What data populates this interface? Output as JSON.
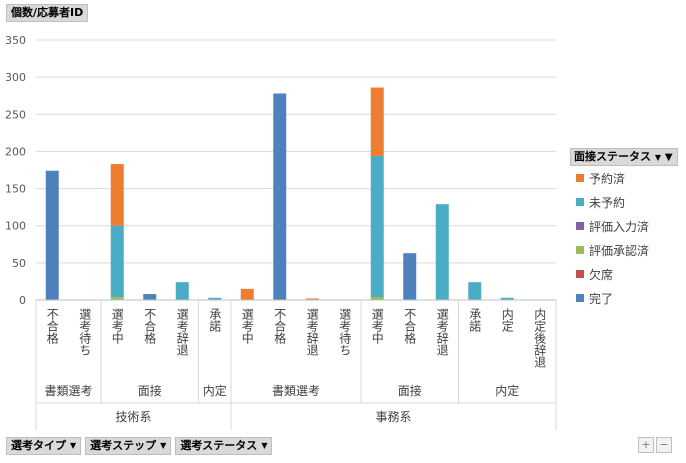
{
  "pivot": {
    "value_field": "個数/応募者ID",
    "filter_icon": "filter-icon",
    "dropdown_icon": "dropdown-arrow-icon",
    "axis_fields": [
      "選考タイプ",
      "選考ステップ",
      "選考ステータス"
    ],
    "zoom_in": "+",
    "zoom_out": "−"
  },
  "legend": {
    "title": "面接ステータス",
    "items": [
      {
        "label": "予約済",
        "color": "#ED7D31"
      },
      {
        "label": "未予約",
        "color": "#4BACC6"
      },
      {
        "label": "評価入力済",
        "color": "#8064A2"
      },
      {
        "label": "評価承認済",
        "color": "#9BBB59"
      },
      {
        "label": "欠席",
        "color": "#C0504D"
      },
      {
        "label": "完了",
        "color": "#4F81BD"
      }
    ]
  },
  "chart_data": {
    "type": "bar",
    "stacked": true,
    "ylim": [
      0,
      350
    ],
    "yticks": [
      0,
      50,
      100,
      150,
      200,
      250,
      300,
      350
    ],
    "grid": true,
    "legend_position": "right",
    "categories": [
      {
        "label": "不合格",
        "step": "書類選考",
        "type": "技術系"
      },
      {
        "label": "選考待ち",
        "step": "書類選考",
        "type": "技術系"
      },
      {
        "label": "選考中",
        "step": "面接",
        "type": "技術系"
      },
      {
        "label": "不合格",
        "step": "面接",
        "type": "技術系"
      },
      {
        "label": "選考辞退",
        "step": "面接",
        "type": "技術系"
      },
      {
        "label": "承諾",
        "step": "内定",
        "type": "技術系"
      },
      {
        "label": "選考中",
        "step": "書類選考",
        "type": "事務系"
      },
      {
        "label": "不合格",
        "step": "書類選考",
        "type": "事務系"
      },
      {
        "label": "選考辞退",
        "step": "書類選考",
        "type": "事務系"
      },
      {
        "label": "選考待ち",
        "step": "書類選考",
        "type": "事務系"
      },
      {
        "label": "選考中",
        "step": "面接",
        "type": "事務系"
      },
      {
        "label": "不合格",
        "step": "面接",
        "type": "事務系"
      },
      {
        "label": "選考辞退",
        "step": "面接",
        "type": "事務系"
      },
      {
        "label": "承諾",
        "step": "内定",
        "type": "事務系"
      },
      {
        "label": "内定",
        "step": "内定",
        "type": "事務系"
      },
      {
        "label": "内定後辞退",
        "step": "内定",
        "type": "事務系"
      }
    ],
    "step_groups": [
      {
        "label": "書類選考",
        "start": 0,
        "count": 2
      },
      {
        "label": "面接",
        "start": 2,
        "count": 3
      },
      {
        "label": "内定",
        "start": 5,
        "count": 1
      },
      {
        "label": "書類選考",
        "start": 6,
        "count": 4
      },
      {
        "label": "面接",
        "start": 10,
        "count": 3
      },
      {
        "label": "内定",
        "start": 13,
        "count": 3
      }
    ],
    "type_groups": [
      {
        "label": "技術系",
        "start": 0,
        "count": 6
      },
      {
        "label": "事務系",
        "start": 6,
        "count": 10
      }
    ],
    "series": [
      {
        "name": "完了",
        "color": "#4F81BD",
        "values": [
          174,
          0,
          0,
          8,
          0,
          0,
          0,
          278,
          0,
          0,
          0,
          63,
          0,
          0,
          0,
          0
        ]
      },
      {
        "name": "欠席",
        "color": "#C0504D",
        "values": [
          0,
          0,
          0,
          0,
          0,
          0,
          0,
          0,
          0,
          0,
          0,
          0,
          0,
          0,
          0,
          0
        ]
      },
      {
        "name": "評価承認済",
        "color": "#9BBB59",
        "values": [
          0,
          0,
          4,
          0,
          0,
          0,
          0,
          0,
          0,
          0,
          4,
          0,
          0,
          0,
          0,
          0
        ]
      },
      {
        "name": "評価入力済",
        "color": "#8064A2",
        "values": [
          0,
          0,
          0,
          0,
          0,
          0,
          0,
          0,
          0,
          0,
          0,
          0,
          0,
          0,
          0,
          0
        ]
      },
      {
        "name": "未予約",
        "color": "#4BACC6",
        "values": [
          0,
          0,
          96,
          0,
          24,
          3,
          0,
          0,
          0,
          0,
          190,
          0,
          129,
          24,
          3,
          0
        ]
      },
      {
        "name": "予約済",
        "color": "#ED7D31",
        "values": [
          0,
          0,
          83,
          0,
          0,
          0,
          15,
          0,
          2,
          0,
          92,
          0,
          0,
          0,
          0,
          0
        ]
      }
    ]
  }
}
